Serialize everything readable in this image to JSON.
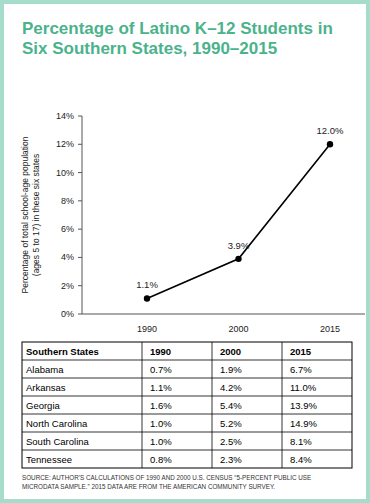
{
  "chart_data": {
    "type": "line",
    "title": "Percentage of Latino K–12 Students in Six Southern States, 1990–2015",
    "ylabel": "Percentage of total school-age population (ages 5 to 17) in these six states",
    "categories": [
      "1990",
      "2000",
      "2015"
    ],
    "values": [
      1.1,
      3.9,
      12.0
    ],
    "value_labels": [
      "1.1%",
      "3.9%",
      "12.0%"
    ],
    "color": "#000000",
    "marker": "circle",
    "data_labels": true,
    "grid": false,
    "ylim": [
      0,
      14
    ],
    "yticks": [
      {
        "value": 0,
        "label": "0%"
      },
      {
        "value": 2,
        "label": "2%"
      },
      {
        "value": 4,
        "label": "4%"
      },
      {
        "value": 6,
        "label": "6%"
      },
      {
        "value": 8,
        "label": "8%"
      },
      {
        "value": 10,
        "label": "10%"
      },
      {
        "value": 12,
        "label": "12%"
      },
      {
        "value": 14,
        "label": "14%"
      }
    ]
  },
  "table": {
    "header": [
      "Southern States",
      "1990",
      "2000",
      "2015"
    ],
    "rows": [
      [
        "Alabama",
        "0.7%",
        "1.9%",
        "6.7%"
      ],
      [
        "Arkansas",
        "1.1%",
        "4.2%",
        "11.0%"
      ],
      [
        "Georgia",
        "1.6%",
        "5.4%",
        "13.9%"
      ],
      [
        "North Carolina",
        "1.0%",
        "5.2%",
        "14.9%"
      ],
      [
        "South Carolina",
        "1.0%",
        "2.5%",
        "8.1%"
      ],
      [
        "Tennessee",
        "0.8%",
        "2.3%",
        "8.4%"
      ]
    ]
  },
  "source": "SOURCE: AUTHOR’S CALCULATIONS OF 1990 AND 2000 U.S. CENSUS “5-PERCENT PUBLIC USE MICRODATA SAMPLE.” 2015 DATA ARE FROM THE AMERICAN COMMUNITY SURVEY."
}
